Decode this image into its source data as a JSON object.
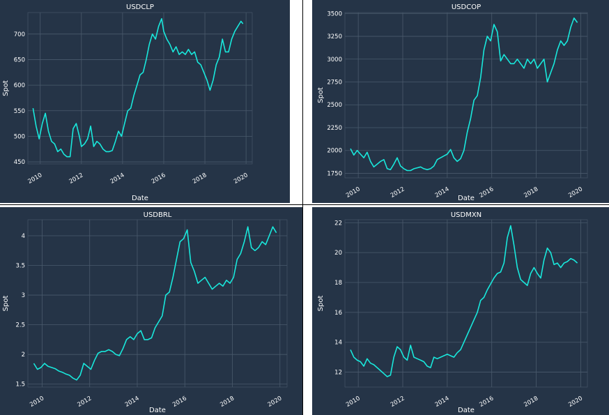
{
  "colors": {
    "background": "#253447",
    "line": "#19e8dc",
    "grid": "#4a5a6c",
    "text": "#ffffff",
    "divider": "#000000"
  },
  "chart_data": [
    {
      "type": "line",
      "title": "USDCLP",
      "xlabel": "Date",
      "ylabel": "Spot",
      "xlim": [
        2009.4,
        2020.3
      ],
      "ylim": [
        446,
        742
      ],
      "xticks": [
        2010,
        2012,
        2014,
        2016,
        2018,
        2020
      ],
      "yticks": [
        450,
        500,
        550,
        600,
        650,
        700
      ],
      "grid": true,
      "legend": "none",
      "series": [
        {
          "x": [
            2009.65,
            2009.8,
            2009.95,
            2010.1,
            2010.25,
            2010.4,
            2010.55,
            2010.7,
            2010.85,
            2011.0,
            2011.15,
            2011.3,
            2011.45,
            2011.6,
            2011.75,
            2011.9,
            2012.0,
            2012.15,
            2012.3,
            2012.45,
            2012.6,
            2012.75,
            2012.9,
            2013.05,
            2013.2,
            2013.35,
            2013.5,
            2013.65,
            2013.8,
            2013.95,
            2014.1,
            2014.25,
            2014.4,
            2014.55,
            2014.7,
            2014.85,
            2015.0,
            2015.15,
            2015.3,
            2015.45,
            2015.6,
            2015.75,
            2015.9,
            2016.0,
            2016.15,
            2016.3,
            2016.45,
            2016.6,
            2016.75,
            2016.9,
            2017.05,
            2017.2,
            2017.35,
            2017.5,
            2017.65,
            2017.8,
            2017.95,
            2018.1,
            2018.25,
            2018.4,
            2018.55,
            2018.7,
            2018.85,
            2019.0,
            2019.15,
            2019.3,
            2019.45,
            2019.6,
            2019.75,
            2019.85
          ],
          "y": [
            555,
            520,
            495,
            525,
            545,
            510,
            490,
            485,
            470,
            475,
            465,
            460,
            460,
            515,
            525,
            500,
            480,
            485,
            495,
            520,
            480,
            490,
            485,
            475,
            470,
            470,
            472,
            490,
            510,
            500,
            525,
            550,
            555,
            580,
            600,
            620,
            625,
            650,
            680,
            700,
            690,
            715,
            730,
            705,
            690,
            680,
            665,
            675,
            660,
            665,
            660,
            670,
            660,
            665,
            645,
            640,
            625,
            610,
            590,
            610,
            640,
            655,
            690,
            665,
            665,
            690,
            705,
            715,
            725,
            720
          ]
        }
      ]
    },
    {
      "type": "line",
      "title": "USDCOP",
      "xlabel": "Date",
      "ylabel": "Spot",
      "xlim": [
        2009.4,
        2020.3
      ],
      "ylim": [
        1700,
        3510
      ],
      "xticks": [
        2010,
        2012,
        2014,
        2016,
        2018,
        2020
      ],
      "yticks": [
        1750,
        2000,
        2250,
        2500,
        2750,
        3000,
        3250,
        3500
      ],
      "grid": true,
      "legend": "none",
      "series": [
        {
          "x": [
            2009.65,
            2009.8,
            2009.95,
            2010.1,
            2010.25,
            2010.4,
            2010.55,
            2010.7,
            2010.85,
            2011.0,
            2011.15,
            2011.3,
            2011.45,
            2011.6,
            2011.75,
            2011.9,
            2012.05,
            2012.2,
            2012.35,
            2012.5,
            2012.65,
            2012.8,
            2012.95,
            2013.1,
            2013.25,
            2013.4,
            2013.55,
            2013.7,
            2013.85,
            2014.0,
            2014.15,
            2014.3,
            2014.45,
            2014.6,
            2014.75,
            2014.9,
            2015.05,
            2015.2,
            2015.35,
            2015.5,
            2015.65,
            2015.8,
            2015.95,
            2016.1,
            2016.25,
            2016.4,
            2016.55,
            2016.7,
            2016.85,
            2017.0,
            2017.15,
            2017.3,
            2017.45,
            2017.6,
            2017.75,
            2017.9,
            2018.05,
            2018.2,
            2018.35,
            2018.5,
            2018.65,
            2018.8,
            2018.95,
            2019.1,
            2019.25,
            2019.4,
            2019.55,
            2019.7,
            2019.85
          ],
          "y": [
            2020,
            1950,
            2000,
            1960,
            1920,
            1980,
            1880,
            1820,
            1850,
            1880,
            1900,
            1800,
            1790,
            1850,
            1920,
            1830,
            1800,
            1780,
            1780,
            1800,
            1810,
            1820,
            1800,
            1790,
            1800,
            1830,
            1900,
            1920,
            1940,
            1960,
            2010,
            1920,
            1880,
            1910,
            2000,
            2200,
            2350,
            2550,
            2600,
            2800,
            3100,
            3250,
            3200,
            3380,
            3300,
            2980,
            3050,
            3000,
            2950,
            2950,
            3000,
            2950,
            2900,
            3000,
            2950,
            3000,
            2900,
            2950,
            3000,
            2750,
            2850,
            2950,
            3100,
            3200,
            3150,
            3200,
            3350,
            3450,
            3400
          ]
        }
      ]
    },
    {
      "type": "line",
      "title": "USDBRL",
      "xlabel": "Date",
      "ylabel": "Spot",
      "xlim": [
        2009.4,
        2020.3
      ],
      "ylim": [
        1.45,
        4.27
      ],
      "xticks": [
        2010,
        2012,
        2014,
        2016,
        2018,
        2020
      ],
      "yticks": [
        1.5,
        2.0,
        2.5,
        3.0,
        3.5,
        4.0
      ],
      "grid": true,
      "legend": "none",
      "series": [
        {
          "x": [
            2009.65,
            2009.8,
            2009.95,
            2010.1,
            2010.25,
            2010.4,
            2010.55,
            2010.7,
            2010.85,
            2011.0,
            2011.15,
            2011.3,
            2011.45,
            2011.6,
            2011.75,
            2011.9,
            2012.05,
            2012.2,
            2012.35,
            2012.5,
            2012.65,
            2012.8,
            2012.95,
            2013.1,
            2013.25,
            2013.4,
            2013.55,
            2013.7,
            2013.85,
            2014.0,
            2014.15,
            2014.3,
            2014.45,
            2014.6,
            2014.75,
            2014.9,
            2015.05,
            2015.2,
            2015.35,
            2015.5,
            2015.65,
            2015.8,
            2015.95,
            2016.1,
            2016.25,
            2016.4,
            2016.55,
            2016.7,
            2016.85,
            2017.0,
            2017.15,
            2017.3,
            2017.45,
            2017.6,
            2017.75,
            2017.9,
            2018.05,
            2018.2,
            2018.35,
            2018.5,
            2018.65,
            2018.8,
            2018.95,
            2019.1,
            2019.25,
            2019.4,
            2019.55,
            2019.7,
            2019.85
          ],
          "y": [
            1.85,
            1.75,
            1.78,
            1.85,
            1.8,
            1.78,
            1.76,
            1.72,
            1.7,
            1.67,
            1.65,
            1.6,
            1.57,
            1.65,
            1.85,
            1.8,
            1.75,
            1.9,
            2.02,
            2.05,
            2.05,
            2.08,
            2.05,
            2.0,
            1.98,
            2.1,
            2.25,
            2.3,
            2.25,
            2.35,
            2.4,
            2.25,
            2.25,
            2.28,
            2.45,
            2.55,
            2.65,
            3.0,
            3.05,
            3.3,
            3.6,
            3.9,
            3.95,
            4.1,
            3.55,
            3.4,
            3.2,
            3.25,
            3.3,
            3.2,
            3.1,
            3.15,
            3.2,
            3.15,
            3.25,
            3.2,
            3.3,
            3.6,
            3.7,
            3.9,
            4.15,
            3.8,
            3.75,
            3.8,
            3.9,
            3.85,
            4.0,
            4.15,
            4.05
          ]
        }
      ]
    },
    {
      "type": "line",
      "title": "USDMXN",
      "xlabel": "Date",
      "ylabel": "Spot",
      "xlim": [
        2009.4,
        2020.3
      ],
      "ylim": [
        11.0,
        22.2
      ],
      "xticks": [
        2010,
        2012,
        2014,
        2016,
        2018,
        2020
      ],
      "yticks": [
        12,
        14,
        16,
        18,
        20,
        22
      ],
      "grid": true,
      "legend": "none",
      "series": [
        {
          "x": [
            2009.65,
            2009.8,
            2009.95,
            2010.1,
            2010.25,
            2010.4,
            2010.55,
            2010.7,
            2010.85,
            2011.0,
            2011.15,
            2011.3,
            2011.45,
            2011.6,
            2011.75,
            2011.9,
            2012.05,
            2012.2,
            2012.35,
            2012.5,
            2012.65,
            2012.8,
            2012.95,
            2013.1,
            2013.25,
            2013.4,
            2013.55,
            2013.7,
            2013.85,
            2014.0,
            2014.15,
            2014.3,
            2014.45,
            2014.6,
            2014.75,
            2014.9,
            2015.05,
            2015.2,
            2015.35,
            2015.5,
            2015.65,
            2015.8,
            2015.95,
            2016.1,
            2016.25,
            2016.4,
            2016.55,
            2016.7,
            2016.85,
            2017.0,
            2017.15,
            2017.3,
            2017.45,
            2017.6,
            2017.75,
            2017.9,
            2018.05,
            2018.2,
            2018.35,
            2018.5,
            2018.65,
            2018.8,
            2018.95,
            2019.1,
            2019.25,
            2019.4,
            2019.55,
            2019.7,
            2019.85
          ],
          "y": [
            13.5,
            13.0,
            12.8,
            12.7,
            12.4,
            12.9,
            12.6,
            12.5,
            12.3,
            12.1,
            11.9,
            11.7,
            11.8,
            13.0,
            13.7,
            13.5,
            13.0,
            12.8,
            13.8,
            13.0,
            12.9,
            12.8,
            12.7,
            12.4,
            12.3,
            13.0,
            12.9,
            13.0,
            13.1,
            13.2,
            13.1,
            13.0,
            13.3,
            13.5,
            14.0,
            14.5,
            15.0,
            15.5,
            16.0,
            16.8,
            17.0,
            17.5,
            17.9,
            18.3,
            18.6,
            18.7,
            19.3,
            21.0,
            21.8,
            20.5,
            19.0,
            18.2,
            18.0,
            17.8,
            18.6,
            19.0,
            18.6,
            18.3,
            19.5,
            20.3,
            20.0,
            19.2,
            19.3,
            19.0,
            19.3,
            19.4,
            19.6,
            19.5,
            19.3
          ]
        }
      ]
    }
  ]
}
